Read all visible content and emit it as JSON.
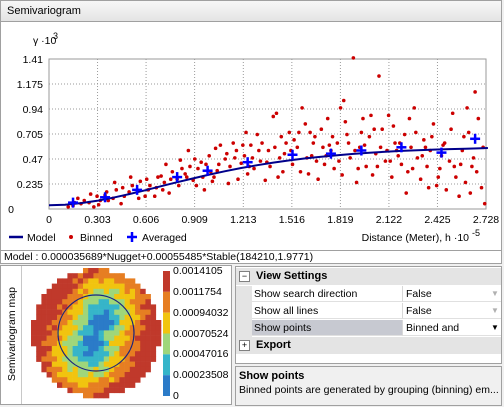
{
  "panel_title": "Semivariogram",
  "chart_data": {
    "type": "scatter",
    "y_axis_label": "γ ·10",
    "y_axis_exponent": "3",
    "y_ticks": [
      "0.235",
      "0.47",
      "0.705",
      "0.94",
      "1.175",
      "1.41"
    ],
    "x_ticks": [
      "0",
      "0.303",
      "0.606",
      "0.909",
      "1.213",
      "1.516",
      "1.819",
      "2.122",
      "2.425",
      "2.728"
    ],
    "x_axis_label": "Distance (Meter), h ·10",
    "x_axis_exponent": "-5",
    "xlim": [
      0,
      2.728
    ],
    "ylim": [
      0,
      1.41
    ],
    "grid": true,
    "legend": [
      {
        "name": "Model",
        "color": "#00008b",
        "shape": "line"
      },
      {
        "name": "Binned",
        "color": "#cc0000",
        "shape": "dot"
      },
      {
        "name": "Averaged",
        "color": "#0000ff",
        "shape": "plus"
      }
    ],
    "series": [
      {
        "name": "Binned",
        "points": [
          [
            0.15,
            0.03
          ],
          [
            0.2,
            0.05
          ],
          [
            0.28,
            0.02
          ],
          [
            0.32,
            0.08
          ],
          [
            0.35,
            0.13
          ],
          [
            0.4,
            0.1
          ],
          [
            0.45,
            0.05
          ],
          [
            0.5,
            0.16
          ],
          [
            0.55,
            0.18
          ],
          [
            0.6,
            0.12
          ],
          [
            0.63,
            0.22
          ],
          [
            0.67,
            0.2
          ],
          [
            0.7,
            0.31
          ],
          [
            0.72,
            0.25
          ],
          [
            0.75,
            0.15
          ],
          [
            0.8,
            0.28
          ],
          [
            0.83,
            0.38
          ],
          [
            0.85,
            0.33
          ],
          [
            0.88,
            0.4
          ],
          [
            0.9,
            0.27
          ],
          [
            0.92,
            0.22
          ],
          [
            0.95,
            0.44
          ],
          [
            0.97,
            0.18
          ],
          [
            1.0,
            0.5
          ],
          [
            1.02,
            0.26
          ],
          [
            1.04,
            0.57
          ],
          [
            1.05,
            0.36
          ],
          [
            1.1,
            0.47
          ],
          [
            1.12,
            0.24
          ],
          [
            1.15,
            0.62
          ],
          [
            1.18,
            0.28
          ],
          [
            1.2,
            0.43
          ],
          [
            1.22,
            0.5
          ],
          [
            1.24,
            0.33
          ],
          [
            1.26,
            0.6
          ],
          [
            1.28,
            0.38
          ],
          [
            1.3,
            0.7
          ],
          [
            1.32,
            0.45
          ],
          [
            1.35,
            0.27
          ],
          [
            1.37,
            0.55
          ],
          [
            1.4,
            0.87
          ],
          [
            1.42,
            0.9
          ],
          [
            1.44,
            0.48
          ],
          [
            1.46,
            0.35
          ],
          [
            1.48,
            0.62
          ],
          [
            1.5,
            0.72
          ],
          [
            1.52,
            0.42
          ],
          [
            1.55,
            0.58
          ],
          [
            1.58,
            0.95
          ],
          [
            1.6,
            0.8
          ],
          [
            1.62,
            0.33
          ],
          [
            1.64,
            0.5
          ],
          [
            1.66,
            0.68
          ],
          [
            1.68,
            0.28
          ],
          [
            1.7,
            0.75
          ],
          [
            1.72,
            0.42
          ],
          [
            1.74,
            0.85
          ],
          [
            1.76,
            0.55
          ],
          [
            1.78,
            0.38
          ],
          [
            1.8,
            0.62
          ],
          [
            1.82,
            0.95
          ],
          [
            1.84,
            1.02
          ],
          [
            1.86,
            0.7
          ],
          [
            1.88,
            0.48
          ],
          [
            1.9,
            1.42
          ],
          [
            1.92,
            0.25
          ],
          [
            1.94,
            0.58
          ],
          [
            1.96,
            0.85
          ],
          [
            1.98,
            0.4
          ],
          [
            2.0,
            0.68
          ],
          [
            2.02,
            0.32
          ],
          [
            2.04,
            0.52
          ],
          [
            2.06,
            1.25
          ],
          [
            2.08,
            0.75
          ],
          [
            2.1,
            0.45
          ],
          [
            2.12,
            0.88
          ],
          [
            2.14,
            0.3
          ],
          [
            2.16,
            0.62
          ],
          [
            2.18,
            0.5
          ],
          [
            2.2,
            0.42
          ],
          [
            2.22,
            0.7
          ],
          [
            2.24,
            0.35
          ],
          [
            2.26,
            0.58
          ],
          [
            2.28,
            0.95
          ],
          [
            2.3,
            0.48
          ],
          [
            2.32,
            0.28
          ],
          [
            2.34,
            0.65
          ],
          [
            2.36,
            0.4
          ],
          [
            2.38,
            0.55
          ],
          [
            2.4,
            0.8
          ],
          [
            2.42,
            0.22
          ],
          [
            2.44,
            0.38
          ],
          [
            2.46,
            0.6
          ],
          [
            2.48,
            0.18
          ],
          [
            2.5,
            0.45
          ],
          [
            2.52,
            0.9
          ],
          [
            2.54,
            0.3
          ],
          [
            2.56,
            0.12
          ],
          [
            2.58,
            0.55
          ],
          [
            2.6,
            0.25
          ],
          [
            2.62,
            0.72
          ],
          [
            2.64,
            0.4
          ],
          [
            2.66,
            1.1
          ],
          [
            2.68,
            0.85
          ],
          [
            2.7,
            0.2
          ],
          [
            2.72,
            0.05
          ],
          [
            2.71,
            0.58
          ],
          [
            2.67,
            0.35
          ],
          [
            2.63,
            0.15
          ],
          [
            2.59,
            0.68
          ],
          [
            2.53,
            0.4
          ],
          [
            2.47,
            0.62
          ],
          [
            2.43,
            0.3
          ],
          [
            2.37,
            0.2
          ],
          [
            2.33,
            0.5
          ],
          [
            2.27,
            0.38
          ],
          [
            2.23,
            0.15
          ],
          [
            2.17,
            0.55
          ],
          [
            2.13,
            0.45
          ],
          [
            2.07,
            0.58
          ],
          [
            2.03,
            0.75
          ],
          [
            1.97,
            0.6
          ],
          [
            1.93,
            0.38
          ],
          [
            1.87,
            0.62
          ],
          [
            1.83,
            0.32
          ],
          [
            1.77,
            0.68
          ],
          [
            1.73,
            0.5
          ],
          [
            1.67,
            0.45
          ],
          [
            1.63,
            0.72
          ],
          [
            1.57,
            0.35
          ],
          [
            1.53,
            0.65
          ],
          [
            1.47,
            0.52
          ],
          [
            1.43,
            0.3
          ],
          [
            1.36,
            0.44
          ],
          [
            1.33,
            0.62
          ],
          [
            1.27,
            0.48
          ],
          [
            1.23,
            0.72
          ],
          [
            1.17,
            0.55
          ],
          [
            1.13,
            0.4
          ],
          [
            1.07,
            0.6
          ],
          [
            1.03,
            0.3
          ],
          [
            0.98,
            0.42
          ],
          [
            0.93,
            0.38
          ],
          [
            0.87,
            0.55
          ],
          [
            0.82,
            0.46
          ],
          [
            0.77,
            0.35
          ],
          [
            0.73,
            0.42
          ],
          [
            0.68,
            0.3
          ],
          [
            0.62,
            0.18
          ],
          [
            0.57,
            0.26
          ],
          [
            0.52,
            0.22
          ],
          [
            0.47,
            0.12
          ],
          [
            0.42,
            0.18
          ],
          [
            0.37,
            0.08
          ],
          [
            0.3,
            0.12
          ],
          [
            0.25,
            0.06
          ],
          [
            0.18,
            0.1
          ],
          [
            0.12,
            0.02
          ],
          [
            2.65,
            0.48
          ],
          [
            2.61,
            0.95
          ],
          [
            2.57,
            0.42
          ],
          [
            2.51,
            0.75
          ],
          [
            2.45,
            0.5
          ],
          [
            2.39,
            0.68
          ],
          [
            2.35,
            0.58
          ],
          [
            2.29,
            0.72
          ],
          [
            2.25,
            0.85
          ],
          [
            2.19,
            0.62
          ],
          [
            2.15,
            0.78
          ],
          [
            2.11,
            0.55
          ],
          [
            2.05,
            0.4
          ],
          [
            2.01,
            0.88
          ],
          [
            1.95,
            0.72
          ],
          [
            1.91,
            0.55
          ],
          [
            1.85,
            0.82
          ],
          [
            1.81,
            0.45
          ],
          [
            1.75,
            0.6
          ],
          [
            1.71,
            0.58
          ],
          [
            1.65,
            0.62
          ],
          [
            1.61,
            0.48
          ],
          [
            1.56,
            0.72
          ],
          [
            1.51,
            0.55
          ],
          [
            1.45,
            0.68
          ],
          [
            1.41,
            0.58
          ],
          [
            1.38,
            0.4
          ],
          [
            1.31,
            0.55
          ],
          [
            1.25,
            0.4
          ],
          [
            1.21,
            0.6
          ],
          [
            1.16,
            0.48
          ],
          [
            1.11,
            0.52
          ],
          [
            1.06,
            0.42
          ],
          [
            1.01,
            0.35
          ],
          [
            0.96,
            0.3
          ],
          [
            0.91,
            0.47
          ],
          [
            0.86,
            0.3
          ],
          [
            0.81,
            0.22
          ],
          [
            0.76,
            0.28
          ],
          [
            0.71,
            0.18
          ],
          [
            0.66,
            0.12
          ],
          [
            0.61,
            0.28
          ],
          [
            0.56,
            0.1
          ],
          [
            0.51,
            0.3
          ],
          [
            0.46,
            0.2
          ],
          [
            0.41,
            0.25
          ],
          [
            0.36,
            0.16
          ],
          [
            0.31,
            0.04
          ],
          [
            0.26,
            0.14
          ],
          [
            0.22,
            0.08
          ],
          [
            0.16,
            0.06
          ]
        ]
      },
      {
        "name": "Averaged",
        "points": [
          [
            0.15,
            0.06
          ],
          [
            0.35,
            0.11
          ],
          [
            0.55,
            0.18
          ],
          [
            0.8,
            0.3
          ],
          [
            0.99,
            0.36
          ],
          [
            1.24,
            0.44
          ],
          [
            1.52,
            0.51
          ],
          [
            1.76,
            0.52
          ],
          [
            1.95,
            0.55
          ],
          [
            2.2,
            0.58
          ],
          [
            2.45,
            0.53
          ],
          [
            2.66,
            0.66
          ]
        ]
      },
      {
        "name": "Model",
        "formula": "0.000035689*Nugget+0.00055485*Stable(184210,1.9771)",
        "points": [
          [
            0,
            0.036
          ],
          [
            0.1,
            0.04
          ],
          [
            0.2,
            0.055
          ],
          [
            0.3,
            0.077
          ],
          [
            0.4,
            0.106
          ],
          [
            0.5,
            0.14
          ],
          [
            0.6,
            0.176
          ],
          [
            0.7,
            0.214
          ],
          [
            0.8,
            0.252
          ],
          [
            0.9,
            0.288
          ],
          [
            1.0,
            0.323
          ],
          [
            1.1,
            0.355
          ],
          [
            1.2,
            0.385
          ],
          [
            1.3,
            0.412
          ],
          [
            1.4,
            0.436
          ],
          [
            1.5,
            0.457
          ],
          [
            1.6,
            0.476
          ],
          [
            1.7,
            0.492
          ],
          [
            1.8,
            0.506
          ],
          [
            1.9,
            0.518
          ],
          [
            2.0,
            0.529
          ],
          [
            2.1,
            0.538
          ],
          [
            2.2,
            0.546
          ],
          [
            2.3,
            0.552
          ],
          [
            2.4,
            0.558
          ],
          [
            2.5,
            0.563
          ],
          [
            2.6,
            0.567
          ],
          [
            2.7,
            0.571
          ],
          [
            2.74,
            0.573
          ]
        ]
      }
    ]
  },
  "model_text": "Model : 0.000035689*Nugget+0.00055485*Stable(184210,1.9771)",
  "map": {
    "side_label": "Semivariogram map",
    "legend_values": [
      "0.0014105",
      "0.0011754",
      "0.00094032",
      "0.00070524",
      "0.00047016",
      "0.00023508",
      "0"
    ],
    "colors": [
      "#c0392b",
      "#e67e22",
      "#f1c40f",
      "#9fd67a",
      "#36b5c9",
      "#2b7bc8"
    ]
  },
  "properties": {
    "view_settings": {
      "label": "View Settings",
      "toggle": "−",
      "rows": [
        {
          "name": "Show search direction",
          "value": "False",
          "selected": false
        },
        {
          "name": "Show all lines",
          "value": "False",
          "selected": false
        },
        {
          "name": "Show points",
          "value": "Binned and Averaged",
          "selected": true
        }
      ]
    },
    "export": {
      "label": "Export",
      "toggle": "+"
    }
  },
  "description": {
    "title": "Show points",
    "text": "Binned points are generated by grouping (binning) em..."
  }
}
